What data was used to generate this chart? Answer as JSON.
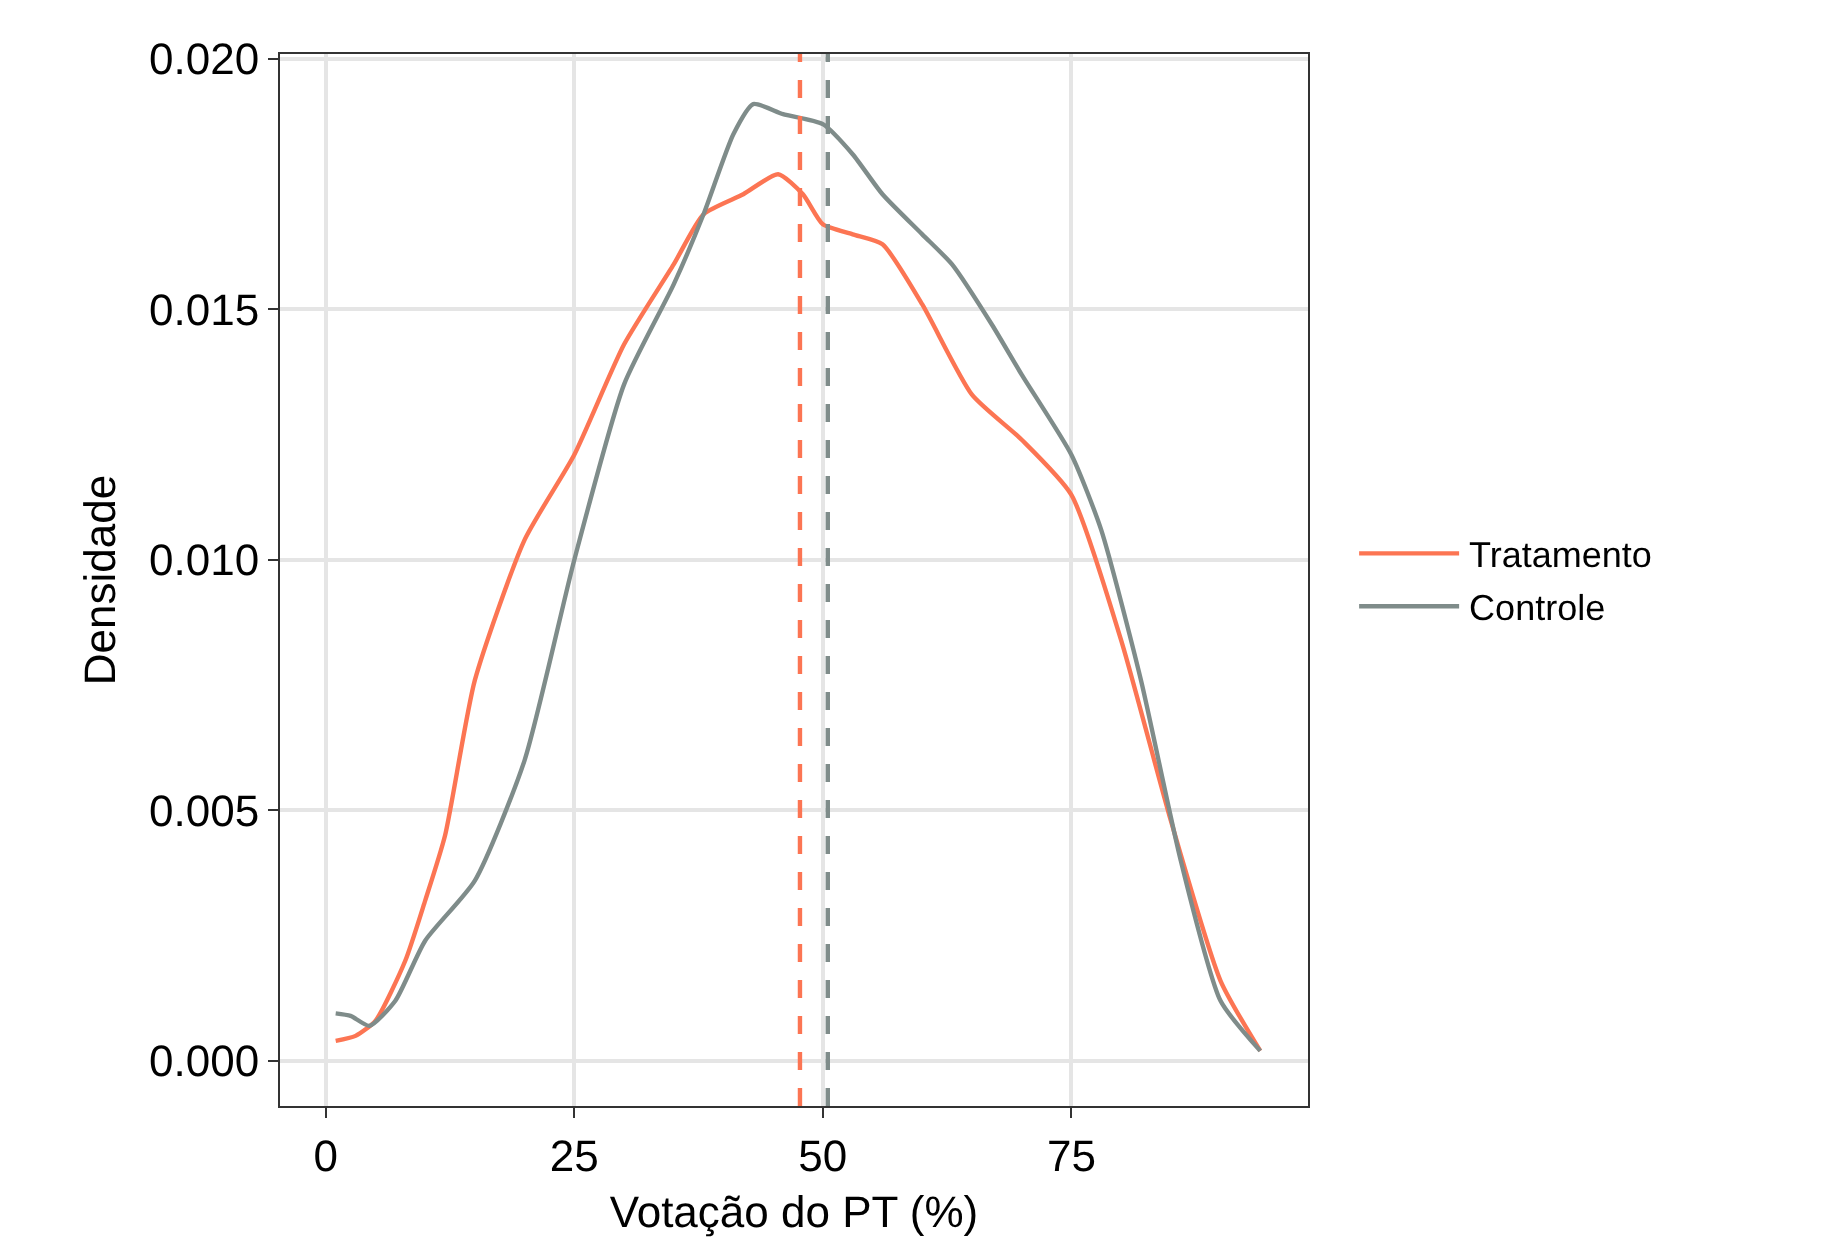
{
  "chart_data": {
    "type": "line",
    "xlabel": "Votação do PT (%)",
    "ylabel": "Densidade",
    "xlim": [
      -4.6,
      98.8
    ],
    "ylim": [
      -0.0009,
      0.0201
    ],
    "xticks": [
      0,
      25,
      50,
      75
    ],
    "yticks": [
      {
        "value": 0,
        "label": "0.000"
      },
      {
        "value": 0.005,
        "label": "0.005"
      },
      {
        "value": 0.01,
        "label": "0.010"
      },
      {
        "value": 0.015,
        "label": "0.015"
      },
      {
        "value": 0.02,
        "label": "0.020"
      }
    ],
    "grid": true,
    "legend": "right",
    "line_style": "solid",
    "marker": "none",
    "series": [
      {
        "name": "Tratamento",
        "color": "#fc7553",
        "x": [
          1,
          3,
          5,
          8,
          10,
          12,
          15,
          20,
          25,
          30,
          35,
          38,
          42,
          45.5,
          48,
          50,
          53,
          56,
          60,
          65,
          70,
          75,
          80,
          85,
          90,
          94
        ],
        "values": [
          0.0004,
          0.0005,
          0.0008,
          0.002,
          0.0032,
          0.0045,
          0.0076,
          0.0104,
          0.0121,
          0.0143,
          0.0159,
          0.0169,
          0.0173,
          0.0177,
          0.0173,
          0.0167,
          0.0165,
          0.0163,
          0.0151,
          0.0133,
          0.0124,
          0.0113,
          0.0084,
          0.0048,
          0.0016,
          0.0002
        ]
      },
      {
        "name": "Controle",
        "color": "#7f8c8a",
        "x": [
          1,
          2.5,
          4.4,
          7,
          10,
          15,
          20,
          25,
          30,
          35,
          38,
          41,
          43,
          46,
          50,
          53,
          56,
          60,
          63,
          67,
          70,
          75,
          78,
          82,
          86,
          90,
          94
        ],
        "values": [
          0.00095,
          0.0009,
          0.0007,
          0.0012,
          0.0024,
          0.0036,
          0.006,
          0.01,
          0.0135,
          0.0155,
          0.0169,
          0.0185,
          0.0191,
          0.0189,
          0.0187,
          0.0181,
          0.0173,
          0.0165,
          0.0159,
          0.0147,
          0.0137,
          0.0121,
          0.0106,
          0.0076,
          0.004,
          0.0012,
          0.0002
        ]
      }
    ],
    "ref_lines": [
      {
        "axis": "x",
        "value": 47.7,
        "color": "#fc7553",
        "line_style": "dashed"
      },
      {
        "axis": "x",
        "value": 50.5,
        "color": "#7f8c8a",
        "line_style": "dashed"
      }
    ]
  }
}
